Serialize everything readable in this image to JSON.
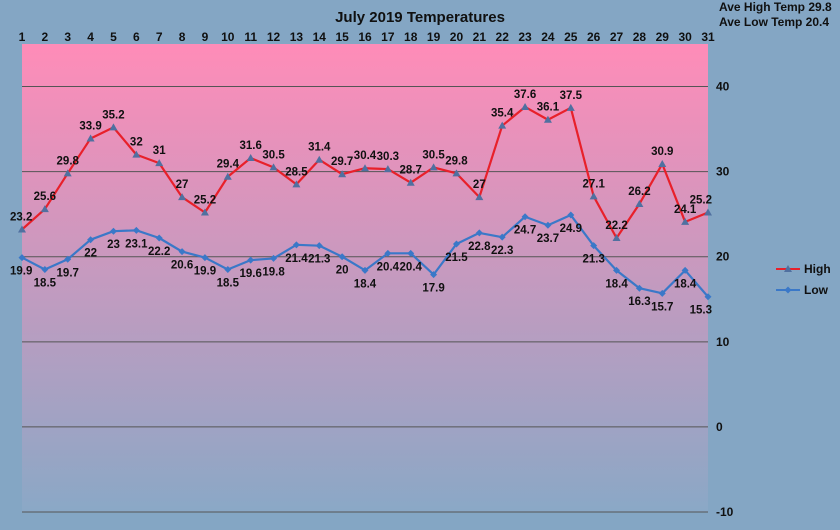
{
  "stats": {
    "ave_high": "Ave High Temp 29.8",
    "ave_low": "Ave Low Temp 20.4"
  },
  "chart_data": {
    "type": "line",
    "title": "July 2019 Temperatures",
    "xlabel": "",
    "ylabel": "",
    "categories": [
      "1",
      "2",
      "3",
      "4",
      "5",
      "6",
      "7",
      "8",
      "9",
      "10",
      "11",
      "12",
      "13",
      "14",
      "15",
      "16",
      "17",
      "18",
      "19",
      "20",
      "21",
      "22",
      "23",
      "24",
      "25",
      "26",
      "27",
      "28",
      "29",
      "30",
      "31"
    ],
    "ylim": [
      -10,
      45
    ],
    "yticks": [
      -10,
      0,
      10,
      20,
      30,
      40
    ],
    "grid": true,
    "legend_position": "right",
    "background_gradient": [
      "#ff8cb8",
      "#8aa8c6"
    ],
    "series": [
      {
        "name": "High",
        "color": "#e8202a",
        "marker_color": "#5070a0",
        "values": [
          23.2,
          25.6,
          29.8,
          33.9,
          35.2,
          32,
          31,
          27,
          25.2,
          29.4,
          31.6,
          30.5,
          28.5,
          31.4,
          29.7,
          30.4,
          30.3,
          28.7,
          30.5,
          29.8,
          27,
          35.4,
          37.6,
          36.1,
          37.5,
          27.1,
          22.2,
          26.2,
          30.9,
          24.1,
          25.2
        ],
        "labels": [
          "23.2",
          "25.6",
          "29.8",
          "33.9",
          "35.2",
          "32",
          "31",
          "27",
          "25.2",
          "29.4",
          "31.6",
          "30.5",
          "28.5",
          "31.4",
          "29.7",
          "30.4",
          "30.3",
          "28.7",
          "30.5",
          "29.8",
          "27",
          "35.4",
          "37.6",
          "36.1",
          "37.5",
          "27.1",
          "22.2",
          "26.2",
          "30.9",
          "24.1",
          "25.2"
        ]
      },
      {
        "name": "Low",
        "color": "#3a78c8",
        "marker_color": "#3a78c8",
        "values": [
          19.9,
          18.5,
          19.7,
          22,
          23,
          23.1,
          22.2,
          20.6,
          19.9,
          18.5,
          19.6,
          19.8,
          21.4,
          21.3,
          20,
          18.4,
          20.4,
          20.4,
          17.9,
          21.5,
          22.8,
          22.3,
          24.7,
          23.7,
          24.9,
          21.3,
          18.4,
          16.3,
          15.7,
          18.4,
          15.3
        ],
        "labels": [
          "19.9",
          "18.5",
          "19.7",
          "22",
          "23",
          "23.1",
          "22.2",
          "20.6",
          "19.9",
          "18.5",
          "19.6",
          "19.8",
          "21.4",
          "21.3",
          "20",
          "18.4",
          "20.4",
          "20.4",
          "17.9",
          "21.5",
          "22.8",
          "22.3",
          "24.7",
          "23.7",
          "24.9",
          "21.3",
          "18.4",
          "16.3",
          "15.7",
          "18.4",
          "15.3"
        ]
      }
    ]
  }
}
